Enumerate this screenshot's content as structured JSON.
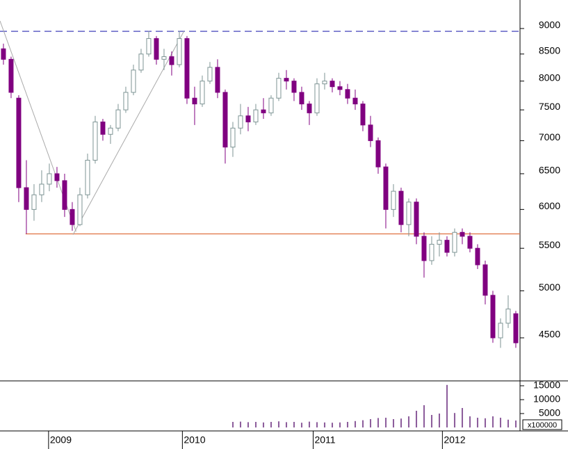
{
  "chart_data": {
    "type": "candlestick",
    "open": [
      8600,
      8400,
      7700,
      6300,
      6000,
      6200,
      6350,
      6500,
      6400,
      6000,
      5800,
      6200,
      6700,
      7300,
      7100,
      7200,
      7500,
      7800,
      8200,
      8500,
      8800,
      8400,
      8450,
      8300,
      8800,
      7700,
      7600,
      8000,
      8250,
      7800,
      6900,
      7200,
      7400,
      7300,
      7500,
      7450,
      7700,
      8050,
      8000,
      7800,
      7600,
      7450,
      7950,
      8000,
      7900,
      7850,
      7700,
      7600,
      7250,
      7000,
      6600,
      6000,
      6250,
      5800,
      6100,
      5650,
      5350,
      5550,
      5600,
      5450,
      5700,
      5650,
      5500,
      5300,
      4950,
      4500,
      4650,
      4750
    ],
    "high": [
      8700,
      8450,
      7750,
      6700,
      6350,
      6550,
      6650,
      6600,
      6500,
      6100,
      6300,
      6800,
      7400,
      7350,
      7250,
      7600,
      7900,
      8300,
      8600,
      8950,
      8850,
      8600,
      8550,
      8950,
      8850,
      7900,
      8100,
      8350,
      8400,
      7850,
      7300,
      7600,
      7550,
      7600,
      7700,
      7750,
      8150,
      8200,
      8050,
      7900,
      7650,
      8050,
      8150,
      8050,
      8000,
      7950,
      7850,
      7650,
      7400,
      7050,
      6650,
      6350,
      6300,
      6150,
      6150,
      5700,
      5650,
      5700,
      5650,
      5750,
      5750,
      5700,
      5550,
      5350,
      5000,
      4700,
      4950,
      4780
    ],
    "low": [
      8300,
      7700,
      6100,
      5680,
      5850,
      6100,
      6250,
      6300,
      5900,
      5720,
      5780,
      6150,
      6650,
      7000,
      6950,
      7150,
      7450,
      7750,
      8150,
      8450,
      8300,
      8200,
      8100,
      8250,
      7600,
      7250,
      7550,
      7950,
      7700,
      6650,
      6750,
      7100,
      7150,
      7250,
      7350,
      7400,
      7650,
      7850,
      7650,
      7500,
      7250,
      7400,
      7850,
      7800,
      7750,
      7600,
      7500,
      7150,
      6900,
      6500,
      5750,
      5900,
      5700,
      5650,
      5550,
      5150,
      5300,
      5400,
      5400,
      5400,
      5550,
      5450,
      5250,
      4850,
      4450,
      4400,
      4600,
      4400
    ],
    "close": [
      8400,
      7800,
      6300,
      6000,
      6200,
      6350,
      6500,
      6400,
      6000,
      5800,
      6200,
      6700,
      7300,
      7100,
      7200,
      7500,
      7800,
      8200,
      8500,
      8800,
      8400,
      8450,
      8300,
      8800,
      7700,
      7600,
      8000,
      8250,
      7800,
      6900,
      7200,
      7400,
      7300,
      7500,
      7450,
      7700,
      8050,
      8000,
      7800,
      7600,
      7450,
      7950,
      8000,
      7900,
      7850,
      7700,
      7600,
      7250,
      7000,
      6600,
      6000,
      6250,
      5800,
      6100,
      5650,
      5350,
      5550,
      5600,
      5450,
      5700,
      5650,
      5500,
      5300,
      4950,
      4500,
      4650,
      4800,
      4450
    ],
    "volume": [
      null,
      null,
      null,
      null,
      null,
      null,
      null,
      null,
      null,
      null,
      null,
      null,
      null,
      null,
      null,
      null,
      null,
      null,
      null,
      null,
      null,
      null,
      null,
      null,
      null,
      null,
      null,
      null,
      null,
      null,
      2000,
      2100,
      1900,
      2000,
      1800,
      2000,
      2200,
      1900,
      2000,
      1700,
      2100,
      1900,
      1800,
      1700,
      1800,
      2000,
      2300,
      2600,
      3000,
      3400,
      3500,
      3000,
      3200,
      4000,
      6000,
      8000,
      4500,
      5000,
      15300,
      5200,
      7000,
      4000,
      3500,
      3300,
      4000,
      3500,
      2800,
      2500
    ],
    "up_color": "#7d9494",
    "down_color": "#800080",
    "volume_color": "#8a5a9a",
    "xlim": [
      -0.45,
      67.55
    ],
    "xticks": [
      {
        "value": 5.9,
        "label": "2009"
      },
      {
        "value": 23.4,
        "label": "2010"
      },
      {
        "value": 40.5,
        "label": "2011"
      },
      {
        "value": 57.4,
        "label": "2012"
      }
    ],
    "ylim": [
      4086,
      9594
    ],
    "log_scale": true,
    "yticks": [
      4500,
      5000,
      5500,
      6000,
      6500,
      7000,
      7500,
      8000,
      8500,
      9000
    ],
    "volume_ylim": [
      0,
      16500
    ],
    "volume_yticks": [
      5000,
      10000,
      15000
    ],
    "volume_unit": "x100000",
    "hlines": [
      {
        "value": 8944,
        "color": "#2a2ab0",
        "dash": true,
        "from": -0.45
      },
      {
        "value": 5680,
        "color": "#e07040",
        "dash": false,
        "from": 2.9
      }
    ],
    "trendlines": [
      {
        "from": [
          -0.45,
          9155
        ],
        "to": [
          9.5,
          5710
        ]
      },
      {
        "from": [
          9.1,
          5670
        ],
        "to": [
          23.6,
          8944
        ]
      }
    ]
  }
}
